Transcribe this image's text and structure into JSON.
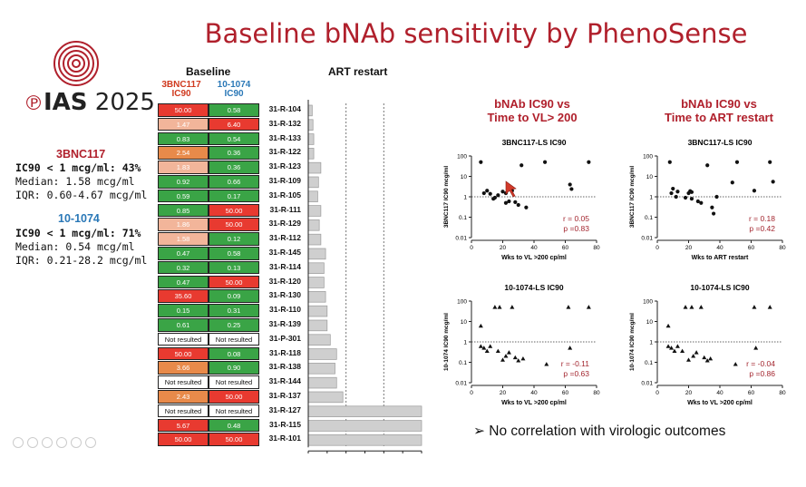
{
  "slide": {
    "title": "Baseline bNAb sensitivity by PhenoSense",
    "logo": {
      "ias": "IAS",
      "year": " 2025"
    }
  },
  "stats": {
    "ab1": {
      "name": "3BNC117",
      "line1": "IC90 < 1 mcg/ml: 43%",
      "line2": "Median: 1.58 mcg/ml",
      "line3": "IQR:  0.60-4.67 mcg/ml",
      "color": "#b0202c"
    },
    "ab2": {
      "name": "10-1074",
      "line1": "IC90 < 1 mcg/ml: 71%",
      "line2": "Median: 0.54 mcg/ml",
      "line3": "IQR:  0.21-28.2 mcg/ml",
      "color": "#2a78b7"
    }
  },
  "table": {
    "header_baseline": "Baseline",
    "col1_name": "3BNC117",
    "col1_sub": "IC90",
    "col2_name": "10-1074",
    "col2_sub": "IC90",
    "rows": [
      {
        "id": "31-R-104",
        "a": "50.00",
        "ac": "#e83a30",
        "b": "0.58",
        "bc": "#3aa446"
      },
      {
        "id": "31-R-132",
        "a": "1.47",
        "ac": "#f2b59a",
        "b": "6.40",
        "bc": "#e83a30"
      },
      {
        "id": "31-R-133",
        "a": "0.83",
        "ac": "#3aa446",
        "b": "0.54",
        "bc": "#3aa446"
      },
      {
        "id": "31-R-122",
        "a": "2.54",
        "ac": "#e88a4a",
        "b": "0.36",
        "bc": "#3aa446"
      },
      {
        "id": "31-R-123",
        "a": "1.83",
        "ac": "#f2b59a",
        "b": "0.36",
        "bc": "#3aa446"
      },
      {
        "id": "31-R-109",
        "a": "0.92",
        "ac": "#3aa446",
        "b": "0.66",
        "bc": "#3aa446"
      },
      {
        "id": "31-R-105",
        "a": "0.59",
        "ac": "#3aa446",
        "b": "0.17",
        "bc": "#3aa446"
      },
      {
        "id": "31-R-111",
        "a": "0.85",
        "ac": "#3aa446",
        "b": "50.00",
        "bc": "#e83a30"
      },
      {
        "id": "31-R-129",
        "a": "1.86",
        "ac": "#f2b59a",
        "b": "50.00",
        "bc": "#e83a30"
      },
      {
        "id": "31-R-112",
        "a": "1.58",
        "ac": "#f2b59a",
        "b": "0.12",
        "bc": "#3aa446"
      },
      {
        "id": "31-R-145",
        "a": "0.47",
        "ac": "#3aa446",
        "b": "0.58",
        "bc": "#3aa446"
      },
      {
        "id": "31-R-114",
        "a": "0.32",
        "ac": "#3aa446",
        "b": "0.13",
        "bc": "#3aa446"
      },
      {
        "id": "31-R-120",
        "a": "0.47",
        "ac": "#3aa446",
        "b": "50.00",
        "bc": "#e83a30"
      },
      {
        "id": "31-R-130",
        "a": "35.60",
        "ac": "#e83a30",
        "b": "0.09",
        "bc": "#3aa446"
      },
      {
        "id": "31-R-110",
        "a": "0.15",
        "ac": "#3aa446",
        "b": "0.31",
        "bc": "#3aa446"
      },
      {
        "id": "31-R-139",
        "a": "0.61",
        "ac": "#3aa446",
        "b": "0.25",
        "bc": "#3aa446"
      },
      {
        "id": "31-P-301",
        "a": "Not resulted",
        "ac": "#ffffff",
        "b": "Not resulted",
        "bc": "#ffffff"
      },
      {
        "id": "31-R-118",
        "a": "50.00",
        "ac": "#e83a30",
        "b": "0.08",
        "bc": "#3aa446"
      },
      {
        "id": "31-R-138",
        "a": "3.66",
        "ac": "#e88a4a",
        "b": "0.90",
        "bc": "#3aa446"
      },
      {
        "id": "31-R-144",
        "a": "Not resulted",
        "ac": "#ffffff",
        "b": "Not resulted",
        "bc": "#ffffff"
      },
      {
        "id": "31-R-137",
        "a": "2.43",
        "ac": "#e88a4a",
        "b": "50.00",
        "bc": "#e83a30"
      },
      {
        "id": "31-R-127",
        "a": "Not resulted",
        "ac": "#ffffff",
        "b": "Not resulted",
        "bc": "#ffffff"
      },
      {
        "id": "31-R-115",
        "a": "5.67",
        "ac": "#e83a30",
        "b": "0.48",
        "bc": "#3aa446"
      },
      {
        "id": "31-R-101",
        "a": "50.00",
        "ac": "#e83a30",
        "b": "50.00",
        "bc": "#e83a30"
      }
    ]
  },
  "subtitles": {
    "left": [
      "bNAb IC90 vs",
      "Time to VL> 200"
    ],
    "right": [
      "bNAb IC90 vs",
      "Time to ART restart"
    ]
  },
  "conclusion": "➢  No correlation with virologic outcomes",
  "chart_data": [
    {
      "type": "bar",
      "title": "ART restart",
      "orientation": "horizontal",
      "categories": [
        "31-R-104",
        "31-R-132",
        "31-R-133",
        "31-R-122",
        "31-R-123",
        "31-R-109",
        "31-R-105",
        "31-R-111",
        "31-R-129",
        "31-R-112",
        "31-R-145",
        "31-R-114",
        "31-R-120",
        "31-R-130",
        "31-R-110",
        "31-R-139",
        "31-P-301",
        "31-R-118",
        "31-R-138",
        "31-R-144",
        "31-R-137",
        "31-R-127",
        "31-R-115",
        "31-R-101"
      ],
      "values": [
        2.5,
        3,
        3.5,
        3.5,
        8,
        6.5,
        6,
        8,
        7,
        8,
        11,
        10,
        10,
        11,
        12,
        12,
        14,
        18,
        17,
        18,
        22,
        72,
        72,
        72
      ],
      "xlim": [
        0,
        72
      ],
      "xticks": [
        "0",
        "12",
        "24",
        "36",
        "48",
        "60",
        "72"
      ],
      "dashed_x": [
        24,
        48
      ]
    },
    {
      "type": "scatter",
      "title": "3BNC117-LS IC90",
      "xlabel": "Wks to VL >200 cp/ml",
      "ylabel": "3BNC117 IC90 mcg/ml",
      "xlim": [
        0,
        80
      ],
      "xticks": [
        "0",
        "20",
        "40",
        "60",
        "80"
      ],
      "ylog": true,
      "ylim": [
        0.01,
        100
      ],
      "yticks": [
        "0.01",
        "0.1",
        "1",
        "10",
        "100"
      ],
      "ref_y": 1,
      "marker": "circle",
      "points": [
        [
          6,
          50
        ],
        [
          8,
          1.5
        ],
        [
          10,
          2
        ],
        [
          12,
          1.4
        ],
        [
          14,
          0.8
        ],
        [
          15,
          0.9
        ],
        [
          17,
          1.2
        ],
        [
          20,
          1.8
        ],
        [
          22,
          1.5
        ],
        [
          22,
          0.5
        ],
        [
          24,
          0.6
        ],
        [
          26,
          2
        ],
        [
          28,
          0.55
        ],
        [
          30,
          0.4
        ],
        [
          32,
          35
        ],
        [
          35,
          0.3
        ],
        [
          47,
          50
        ],
        [
          63,
          4
        ],
        [
          64,
          2.4
        ],
        [
          75,
          50
        ]
      ],
      "stat_r": "r = 0.05",
      "stat_p": "p =0.83"
    },
    {
      "type": "scatter",
      "title": "3BNC117-LS IC90",
      "xlabel": "Wks to ART restart",
      "ylabel": "3BNC117 IC90 mcg/ml",
      "xlim": [
        0,
        80
      ],
      "xticks": [
        "0",
        "20",
        "40",
        "60",
        "80"
      ],
      "ylog": true,
      "ylim": [
        0.01,
        100
      ],
      "yticks": [
        "0.01",
        "0.1",
        "1",
        "10",
        "100"
      ],
      "ref_y": 1,
      "marker": "circle",
      "points": [
        [
          8,
          50
        ],
        [
          9,
          1.5
        ],
        [
          10,
          2.5
        ],
        [
          12,
          1
        ],
        [
          13,
          1.8
        ],
        [
          18,
          0.9
        ],
        [
          20,
          1.5
        ],
        [
          21,
          1.9
        ],
        [
          22,
          1.7
        ],
        [
          22,
          0.8
        ],
        [
          26,
          0.6
        ],
        [
          28,
          0.5
        ],
        [
          32,
          35
        ],
        [
          35,
          0.3
        ],
        [
          36,
          0.15
        ],
        [
          38,
          1
        ],
        [
          48,
          5
        ],
        [
          51,
          50
        ],
        [
          62,
          2
        ],
        [
          72,
          50
        ],
        [
          74,
          5.5
        ]
      ],
      "stat_r": "r = 0.18",
      "stat_p": "p =0.42"
    },
    {
      "type": "scatter",
      "title": "10-1074-LS IC90",
      "xlabel": "Wks to VL >200 cp/ml",
      "ylabel": "10-1074 IC90 mcg/ml",
      "xlim": [
        0,
        80
      ],
      "xticks": [
        "0",
        "20",
        "40",
        "60",
        "80"
      ],
      "ylog": true,
      "ylim": [
        0.01,
        100
      ],
      "yticks": [
        "0.01",
        "0.1",
        "1",
        "10",
        "100"
      ],
      "ref_y": 1,
      "marker": "triangle",
      "points": [
        [
          6,
          6
        ],
        [
          6,
          0.6
        ],
        [
          8,
          0.5
        ],
        [
          10,
          0.35
        ],
        [
          12,
          0.6
        ],
        [
          15,
          50
        ],
        [
          17,
          0.35
        ],
        [
          18,
          50
        ],
        [
          20,
          0.13
        ],
        [
          22,
          0.2
        ],
        [
          24,
          0.3
        ],
        [
          26,
          50
        ],
        [
          28,
          0.17
        ],
        [
          30,
          0.12
        ],
        [
          33,
          0.15
        ],
        [
          48,
          0.08
        ],
        [
          62,
          50
        ],
        [
          63,
          0.5
        ],
        [
          75,
          50
        ]
      ],
      "stat_r": "r = -0.11",
      "stat_p": "p =0.63"
    },
    {
      "type": "scatter",
      "title": "10-1074-LS IC90",
      "xlabel": "Wks to VL >200 cp/ml",
      "ylabel": "10-1074 IC90 mcg/ml",
      "xlim": [
        0,
        80
      ],
      "xticks": [
        "0",
        "20",
        "40",
        "60",
        "80"
      ],
      "ylog": true,
      "ylim": [
        0.01,
        100
      ],
      "yticks": [
        "0.01",
        "0.1",
        "1",
        "10",
        "100"
      ],
      "ref_y": 1,
      "marker": "triangle",
      "points": [
        [
          7,
          6
        ],
        [
          7,
          0.6
        ],
        [
          9,
          0.5
        ],
        [
          11,
          0.35
        ],
        [
          13,
          0.6
        ],
        [
          16,
          0.35
        ],
        [
          18,
          50
        ],
        [
          20,
          0.13
        ],
        [
          22,
          50
        ],
        [
          23,
          0.2
        ],
        [
          25,
          0.3
        ],
        [
          28,
          50
        ],
        [
          30,
          0.17
        ],
        [
          32,
          0.12
        ],
        [
          34,
          0.15
        ],
        [
          50,
          0.08
        ],
        [
          62,
          50
        ],
        [
          63,
          0.5
        ],
        [
          72,
          50
        ]
      ],
      "stat_r": "r = -0.04",
      "stat_p": "p =0.86"
    }
  ]
}
